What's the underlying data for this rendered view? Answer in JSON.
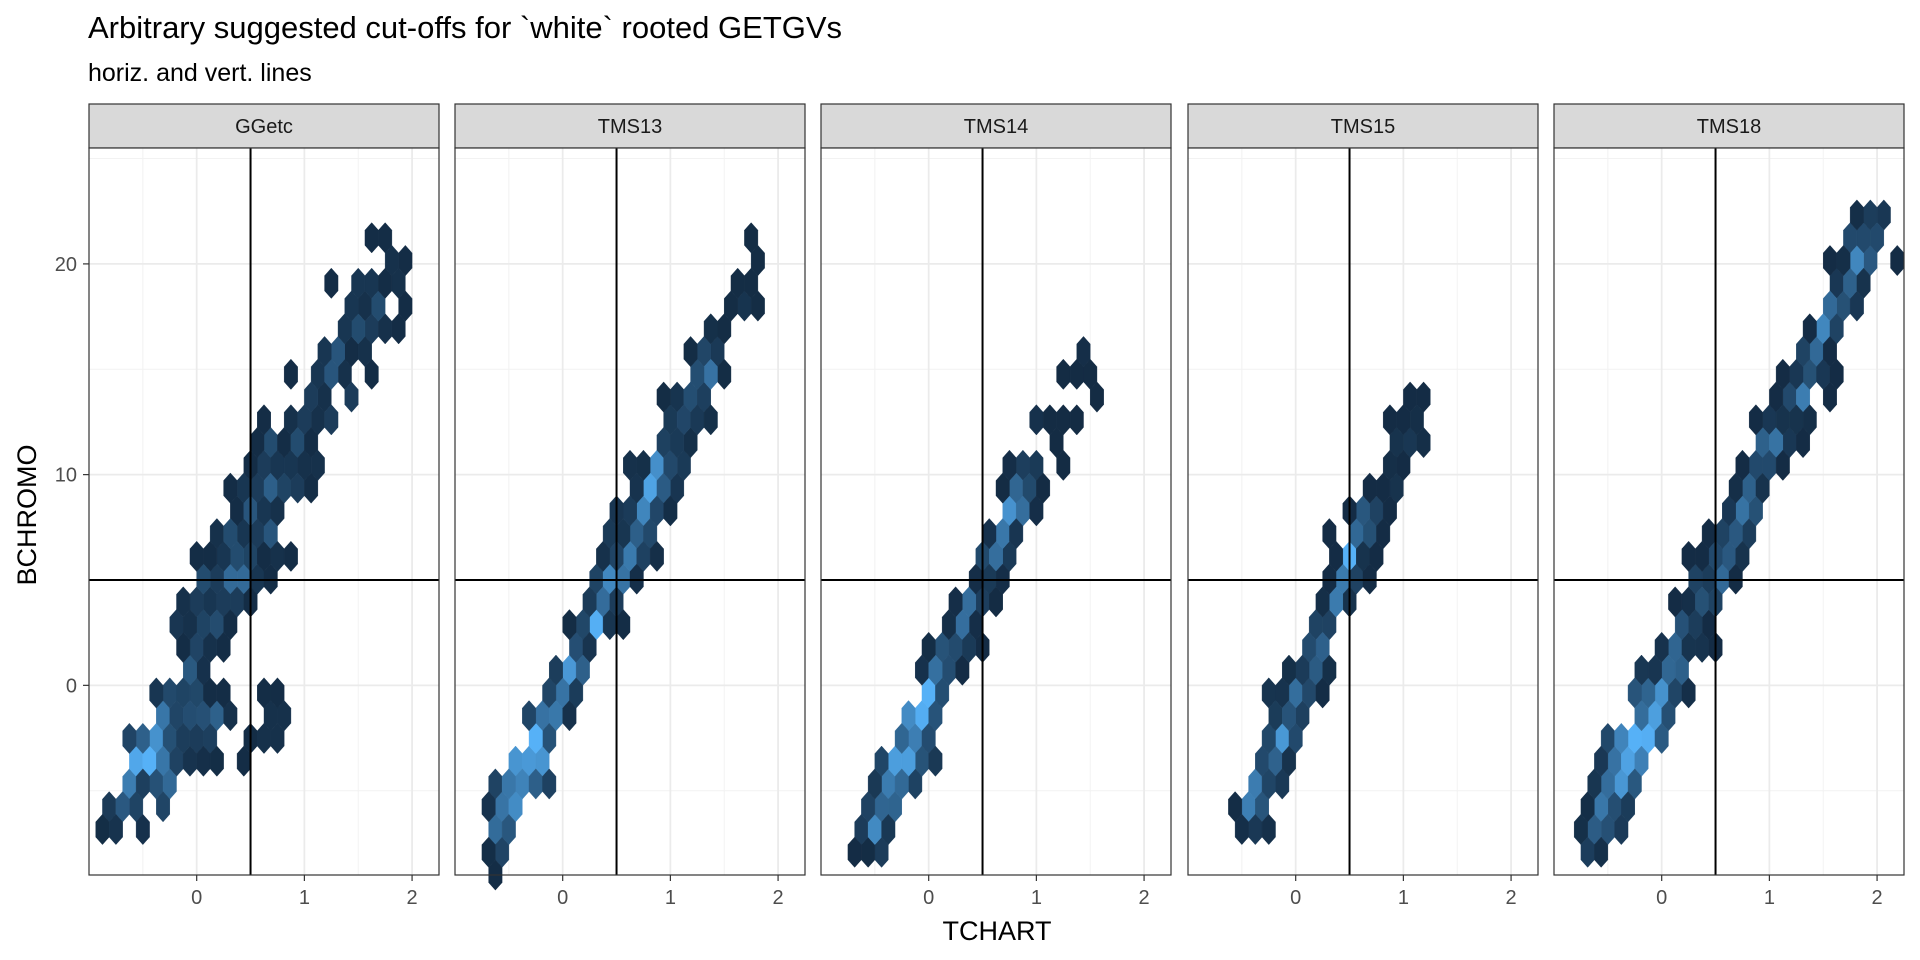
{
  "chart_data": {
    "type": "hexbin",
    "title": "Arbitrary suggested cut-offs for `white` rooted GETGVs",
    "subtitle": "horiz. and vert. lines",
    "xlabel": "TCHART",
    "ylabel": "BCHROMO",
    "xlim": [
      -1.0,
      2.25
    ],
    "ylim": [
      -9.0,
      25.5
    ],
    "x_ticks": [
      0,
      1,
      2
    ],
    "y_ticks": [
      0,
      10,
      20
    ],
    "grid": true,
    "reference_lines": {
      "vertical_x": 0.5,
      "horizontal_y": 5
    },
    "fill_scale": {
      "low": "#132B43",
      "high": "#56B1F7"
    },
    "panels": [
      {
        "name": "GGetc",
        "clusters": [
          {
            "x0": -0.8,
            "y0": -6.5,
            "x1": 0.55,
            "y1": 6.5,
            "n": 130,
            "spread": 0.9
          },
          {
            "x0": -0.1,
            "y0": 2.0,
            "x1": 0.8,
            "y1": 12.0,
            "n": 90,
            "spread": 1.4
          },
          {
            "x0": 0.6,
            "y0": 7.5,
            "x1": 1.85,
            "y1": 20.5,
            "n": 140,
            "spread": 1.8
          },
          {
            "x0": -0.5,
            "y0": -4.5,
            "x1": 0.25,
            "y1": -1.0,
            "n": 70,
            "spread": 1.2
          },
          {
            "x0": 0.45,
            "y0": -4.0,
            "x1": 0.8,
            "y1": -1.0,
            "n": 12,
            "spread": 0.6
          }
        ],
        "peaks": [
          {
            "x": -0.42,
            "y": -3.2,
            "w": 0.45
          }
        ]
      },
      {
        "name": "TMS13",
        "clusters": [
          {
            "x0": -0.65,
            "y0": -7.5,
            "x1": 1.45,
            "y1": 16.0,
            "n": 420,
            "spread": 0.85
          },
          {
            "x0": 1.45,
            "y0": 16.0,
            "x1": 1.85,
            "y1": 20.0,
            "n": 10,
            "spread": 0.5
          }
        ],
        "peaks": [
          {
            "x": -0.35,
            "y": -3.5,
            "w": 0.75
          },
          {
            "x": 0.55,
            "y": 8.0,
            "w": 0.25
          }
        ]
      },
      {
        "name": "TMS14",
        "clusters": [
          {
            "x0": -0.6,
            "y0": -7.5,
            "x1": 0.95,
            "y1": 10.0,
            "n": 360,
            "spread": 0.8
          },
          {
            "x0": 0.8,
            "y0": 8.5,
            "x1": 1.5,
            "y1": 15.5,
            "n": 22,
            "spread": 1.2
          }
        ],
        "peaks": [
          {
            "x": -0.25,
            "y": -2.8,
            "w": 0.9
          }
        ]
      },
      {
        "name": "TMS15",
        "clusters": [
          {
            "x0": -0.45,
            "y0": -6.5,
            "x1": 0.7,
            "y1": 8.0,
            "n": 250,
            "spread": 0.8
          },
          {
            "x0": 0.6,
            "y0": 6.5,
            "x1": 1.2,
            "y1": 13.5,
            "n": 35,
            "spread": 1.0
          }
        ],
        "peaks": [
          {
            "x": -0.2,
            "y": -2.0,
            "w": 0.3
          }
        ]
      },
      {
        "name": "TMS18",
        "clusters": [
          {
            "x0": -0.65,
            "y0": -7.5,
            "x1": 2.05,
            "y1": 22.5,
            "n": 560,
            "spread": 0.95
          }
        ],
        "peaks": [
          {
            "x": -0.2,
            "y": -2.8,
            "w": 1.0
          }
        ]
      }
    ]
  }
}
